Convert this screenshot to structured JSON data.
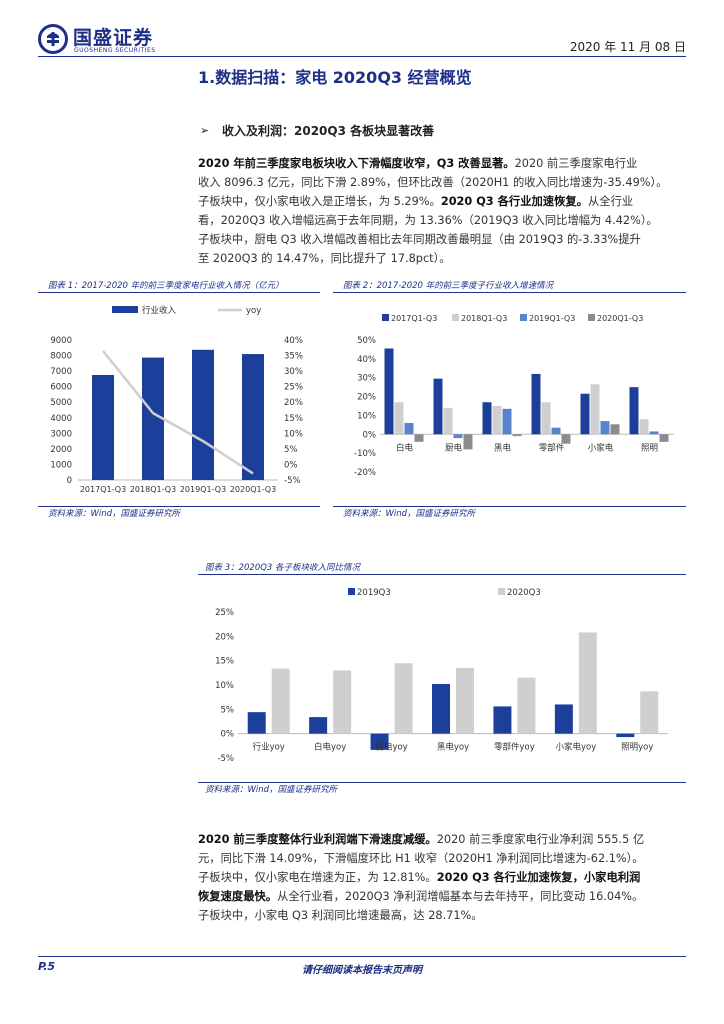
{
  "header": {
    "logo_name": "国盛证券",
    "logo_sub": "GUOSHENG SECURITIES",
    "date": "2020 年 11 月 08 日"
  },
  "section": {
    "title": "1.数据扫描：家电 2020Q3 经营概览",
    "subtitle": "收入及利润：2020Q3 各板块显著改善"
  },
  "para1": {
    "lines": [
      [
        "2020 年前三季度家电板块收入下滑幅度收窄，Q3 改善显著。",
        "2020 前三季度家电行业"
      ],
      [
        "",
        "收入 8096.3 亿元，同比下滑 2.89%，但环比改善（2020H1 的收入同比增速为-35.49%）。"
      ],
      [
        "",
        "子板块中，仅小家电收入是正增长，为 5.29%。"
      ],
      [
        "",
        "看，2020Q3 收入增幅远高于去年同期，为 13.36%（2019Q3 收入同比增幅为 4.42%）。"
      ],
      [
        "",
        "子板块中，厨电 Q3 收入增幅改善相比去年同期改善最明显（由 2019Q3 的-3.33%提升"
      ],
      [
        "",
        "至 2020Q3 的 14.47%，同比提升了 17.8pct）。"
      ]
    ],
    "line3_bold": "2020 Q3 各行业加速恢复。",
    "line3_tail": "从全行业"
  },
  "para2": {
    "lines": [
      [
        "2020 前三季度整体行业利润端下滑速度减缓。",
        "2020 前三季度家电行业净利润 555.5 亿"
      ],
      [
        "",
        "元，同比下滑 14.09%，下滑幅度环比 H1 收窄（2020H1 净利润同比增速为-62.1%）。"
      ],
      [
        "",
        "子板块中，仅小家电在增速为正，为 12.81%。"
      ],
      [
        "恢复速度最快。",
        "从全行业看，2020Q3 净利润增幅基本与去年持平，同比变动 16.04%。"
      ],
      [
        "",
        "子板块中，小家电 Q3 利润同比增速最高，达 28.71%。"
      ]
    ],
    "line3_bold": "2020 Q3 各行业加速恢复，小家电利润"
  },
  "fig1": {
    "title": "图表 1：2017-2020 年的前三季度家电行业收入情况（亿元）",
    "source": "资料来源：Wind，国盛证券研究所"
  },
  "fig2": {
    "title": "图表 2：2017-2020 年的前三季度子行业收入增速情况",
    "source": "资料来源：Wind，国盛证券研究所"
  },
  "fig3": {
    "title": "图表 3：2020Q3 各子板块收入同比情况",
    "source": "资料来源：Wind，国盛证券研究所"
  },
  "footer": {
    "page": "P.5",
    "notice": "请仔细阅读本报告末页声明"
  },
  "colors": {
    "brand": "#1d2f86",
    "bar_blue": "#1c3f9c",
    "bar_grey": "#cfcfcf",
    "bar_lightblue": "#5b82cc",
    "bar_darkgrey": "#8c8c8c"
  },
  "chart_data": [
    {
      "type": "bar",
      "categories": [
        "2017Q1-Q3",
        "2018Q1-Q3",
        "2019Q1-Q3",
        "2020Q1-Q3"
      ],
      "series": [
        {
          "name": "行业收入",
          "type": "bar",
          "axis": "left",
          "values": [
            6750,
            7870,
            8370,
            8096.3
          ]
        },
        {
          "name": "yoy",
          "type": "line",
          "axis": "right",
          "values": [
            36.5,
            16.5,
            7.5,
            -2.89
          ]
        }
      ],
      "ylim": [
        0,
        9000
      ],
      "yticks": [
        0,
        1000,
        2000,
        3000,
        4000,
        5000,
        6000,
        7000,
        8000,
        9000
      ],
      "y2lim": [
        -5,
        40
      ],
      "y2ticks": [
        "-5%",
        "0%",
        "5%",
        "10%",
        "15%",
        "20%",
        "25%",
        "30%",
        "35%",
        "40%"
      ],
      "legend": "top"
    },
    {
      "type": "bar",
      "categories": [
        "白电",
        "厨电",
        "黑电",
        "零部件",
        "小家电",
        "照明"
      ],
      "series": [
        {
          "name": "2017Q1-Q3",
          "values": [
            45.5,
            29.5,
            17,
            32,
            21.5,
            25
          ]
        },
        {
          "name": "2018Q1-Q3",
          "values": [
            17,
            14,
            15,
            17,
            26.5,
            8
          ]
        },
        {
          "name": "2019Q1-Q3",
          "values": [
            6,
            -2,
            13.5,
            3.5,
            7,
            1.5
          ]
        },
        {
          "name": "2020Q1-Q3",
          "values": [
            -4,
            -8,
            -1,
            -5,
            5.29,
            -4
          ]
        }
      ],
      "ylim": [
        -20,
        50
      ],
      "yticks": [
        "-20%",
        "-10%",
        "0%",
        "10%",
        "20%",
        "30%",
        "40%",
        "50%"
      ],
      "legend": "top"
    },
    {
      "type": "bar",
      "categories": [
        "行业yoy",
        "白电yoy",
        "厨电yoy",
        "黑电yoy",
        "零部件yoy",
        "小家电yoy",
        "照明yoy"
      ],
      "series": [
        {
          "name": "2019Q3",
          "values": [
            4.42,
            3.4,
            -3.33,
            10.2,
            5.6,
            6.0,
            -0.7
          ]
        },
        {
          "name": "2020Q3",
          "values": [
            13.36,
            13.0,
            14.47,
            13.5,
            11.5,
            20.8,
            8.7
          ]
        }
      ],
      "ylim": [
        -5,
        25
      ],
      "yticks": [
        "-5%",
        "0%",
        "5%",
        "10%",
        "15%",
        "20%",
        "25%"
      ],
      "legend": "top"
    }
  ]
}
